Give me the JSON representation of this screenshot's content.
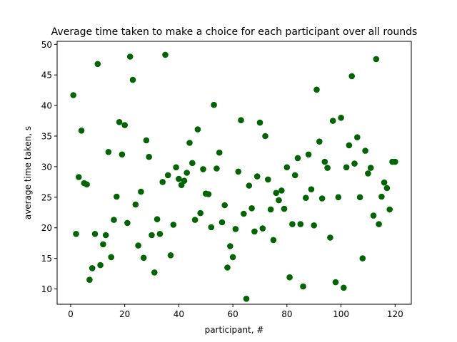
{
  "chart_data": {
    "type": "scatter",
    "title": "Average time taken to make a choice for each participant over all rounds",
    "xlabel": "participant, #",
    "ylabel": "average time taken, s",
    "xlim": [
      -5,
      126
    ],
    "ylim": [
      7.5,
      50.5
    ],
    "xticks": [
      0,
      20,
      40,
      60,
      80,
      100,
      120
    ],
    "yticks": [
      10,
      15,
      20,
      25,
      30,
      35,
      40,
      45,
      50
    ],
    "grid": false,
    "marker_color": "#006400",
    "x": [
      1,
      2,
      3,
      4,
      5,
      6,
      7,
      8,
      9,
      10,
      11,
      12,
      13,
      14,
      15,
      16,
      17,
      18,
      19,
      20,
      21,
      22,
      23,
      24,
      25,
      26,
      27,
      28,
      29,
      30,
      31,
      32,
      33,
      34,
      35,
      36,
      37,
      38,
      39,
      40,
      41,
      42,
      43,
      44,
      45,
      46,
      47,
      48,
      49,
      50,
      51,
      52,
      53,
      54,
      55,
      56,
      57,
      58,
      59,
      60,
      61,
      62,
      63,
      64,
      65,
      66,
      67,
      68,
      69,
      70,
      71,
      72,
      73,
      74,
      75,
      76,
      77,
      78,
      79,
      80,
      81,
      82,
      83,
      84,
      85,
      86,
      87,
      88,
      89,
      90,
      91,
      92,
      93,
      94,
      95,
      96,
      97,
      98,
      99,
      100,
      101,
      102,
      103,
      104,
      105,
      106,
      107,
      108,
      109,
      110,
      111,
      112,
      113,
      114,
      115,
      116,
      117,
      118,
      119,
      120
    ],
    "y": [
      41.7,
      19.0,
      28.3,
      35.9,
      27.3,
      27.1,
      11.5,
      13.4,
      19.0,
      46.8,
      13.9,
      17.3,
      18.8,
      32.4,
      15.2,
      21.3,
      25.1,
      37.3,
      32.0,
      36.8,
      20.8,
      48.0,
      44.2,
      23.8,
      17.1,
      25.9,
      15.1,
      34.3,
      31.6,
      18.8,
      12.7,
      21.4,
      19.0,
      27.5,
      48.3,
      28.6,
      15.5,
      20.5,
      29.9,
      28.0,
      27.0,
      27.7,
      29.0,
      33.9,
      30.6,
      21.3,
      36.1,
      22.4,
      29.6,
      25.6,
      25.5,
      20.1,
      40.1,
      29.7,
      32.3,
      20.9,
      23.7,
      13.5,
      17.0,
      15.2,
      19.8,
      29.2,
      37.6,
      22.3,
      8.4,
      26.9,
      23.2,
      19.4,
      28.4,
      37.2,
      19.9,
      35.0,
      27.9,
      23.0,
      18.0,
      25.7,
      24.5,
      26.1,
      23.1,
      29.9,
      11.9,
      20.6,
      28.6,
      31.4,
      20.6,
      10.4,
      24.9,
      32.0,
      26.3,
      20.4,
      42.6,
      34.1,
      24.8,
      30.8,
      29.8,
      18.4,
      37.5,
      11.1,
      25.0,
      38.0,
      10.2,
      29.9,
      33.5,
      44.8,
      30.5,
      34.8,
      25.0,
      15.0,
      32.6,
      28.9,
      29.8,
      22.0,
      47.6,
      20.6,
      25.1,
      27.4,
      26.5,
      23.0,
      30.8,
      30.8
    ]
  }
}
